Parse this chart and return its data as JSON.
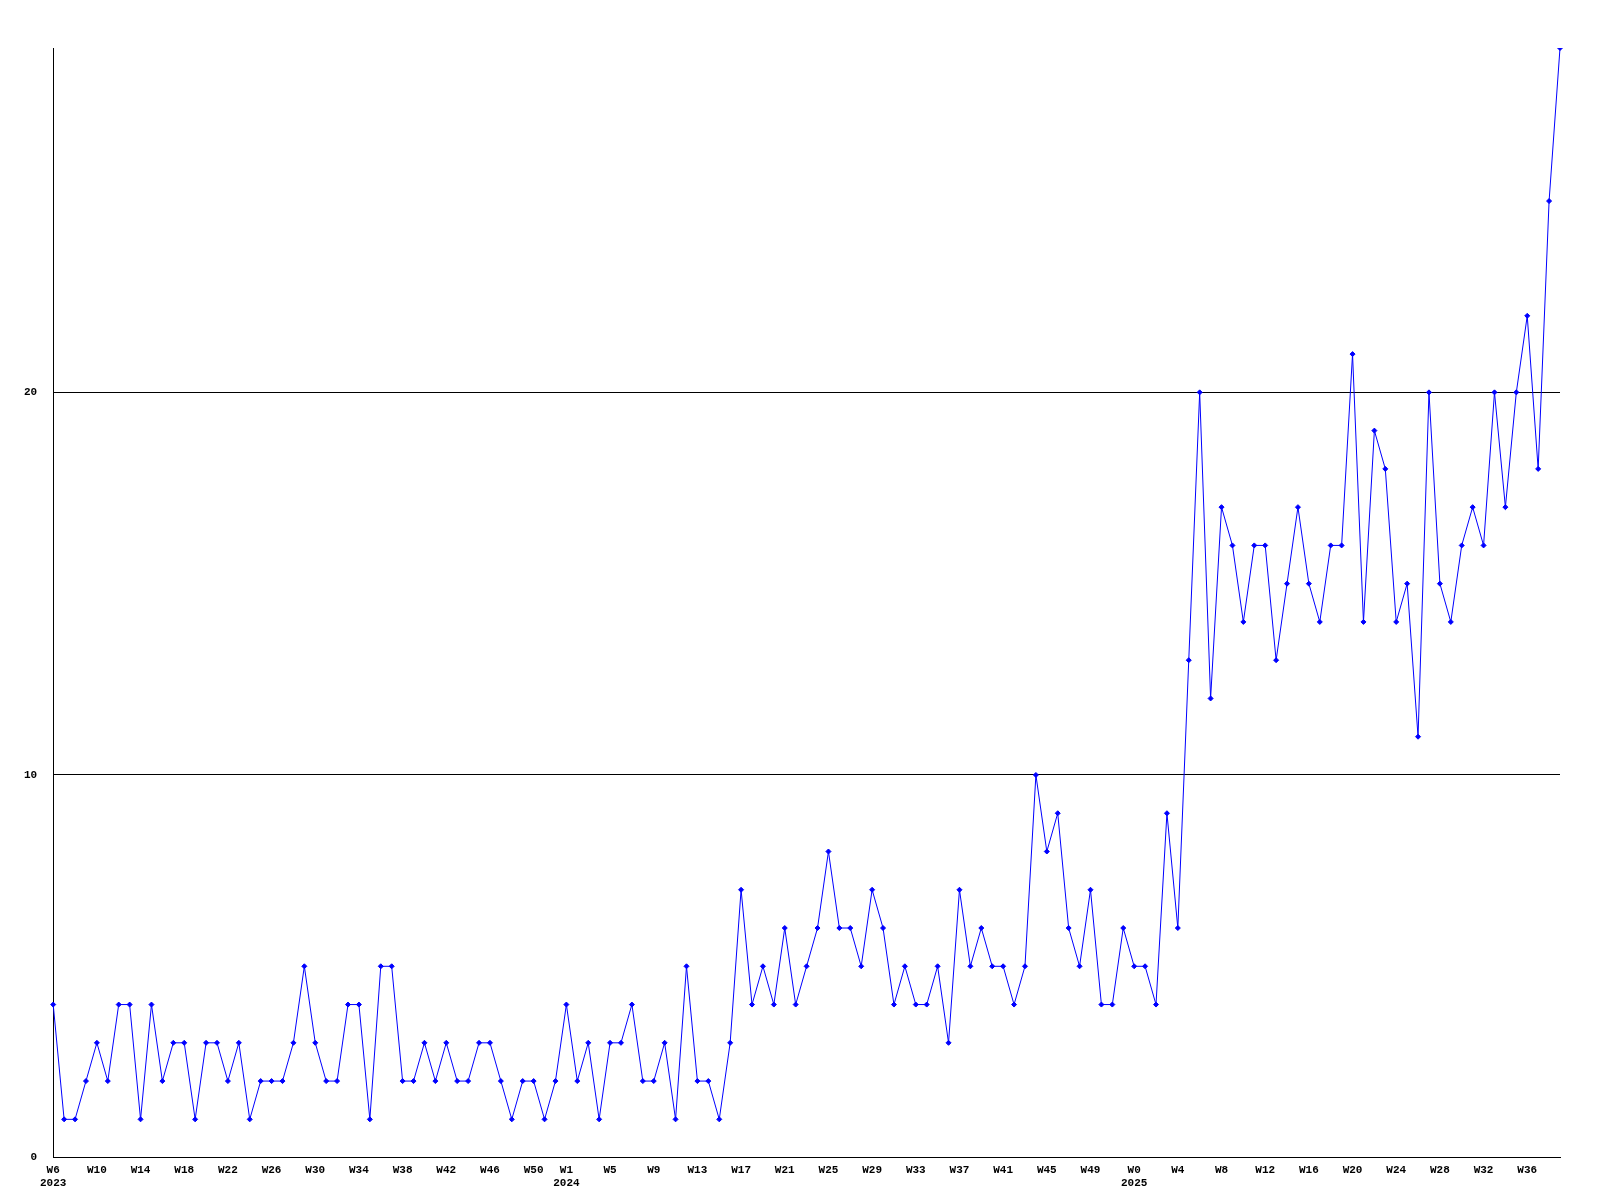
{
  "chart_data": {
    "type": "line",
    "categories": [
      "W6 2023",
      null,
      null,
      null,
      "W10",
      null,
      null,
      null,
      "W14",
      null,
      null,
      null,
      "W18",
      null,
      null,
      null,
      "W22",
      null,
      null,
      null,
      "W26",
      null,
      null,
      null,
      "W30",
      null,
      null,
      null,
      "W34",
      null,
      null,
      null,
      "W38",
      null,
      null,
      null,
      "W42",
      null,
      null,
      null,
      "W46",
      null,
      null,
      null,
      "W50",
      null,
      null,
      "W1 2024",
      null,
      null,
      null,
      "W5",
      null,
      null,
      null,
      "W9",
      null,
      null,
      null,
      "W13",
      null,
      null,
      null,
      "W17",
      null,
      null,
      null,
      "W21",
      null,
      null,
      null,
      "W25",
      null,
      null,
      null,
      "W29",
      null,
      null,
      null,
      "W33",
      null,
      null,
      null,
      "W37",
      null,
      null,
      null,
      "W41",
      null,
      null,
      null,
      "W45",
      null,
      null,
      null,
      "W49",
      null,
      null,
      null,
      "W0 2025",
      null,
      null,
      null,
      "W4",
      null,
      null,
      null,
      "W8",
      null,
      null,
      null,
      "W12",
      null,
      null,
      null,
      "W16",
      null,
      null,
      null,
      "W20",
      null,
      null,
      null,
      "W24",
      null,
      null,
      null,
      "W28",
      null,
      null,
      null,
      "W32",
      null,
      null,
      null,
      "W36",
      null,
      null,
      null
    ],
    "series": [
      {
        "color": "#0000ff",
        "values": [
          4,
          1,
          1,
          2,
          3,
          2,
          4,
          4,
          1,
          4,
          2,
          3,
          3,
          1,
          3,
          3,
          2,
          3,
          1,
          2,
          2,
          2,
          3,
          5,
          3,
          2,
          2,
          4,
          4,
          1,
          5,
          5,
          2,
          2,
          3,
          2,
          3,
          2,
          2,
          3,
          3,
          2,
          1,
          2,
          2,
          1,
          2,
          4,
          2,
          3,
          1,
          3,
          3,
          4,
          2,
          2,
          3,
          1,
          5,
          2,
          2,
          1,
          3,
          7,
          4,
          5,
          4,
          6,
          4,
          5,
          6,
          8,
          6,
          6,
          5,
          7,
          6,
          4,
          5,
          4,
          4,
          5,
          3,
          7,
          5,
          6,
          5,
          5,
          4,
          5,
          10,
          8,
          9,
          6,
          5,
          7,
          4,
          4,
          6,
          5,
          5,
          4,
          9,
          6,
          13,
          20,
          12,
          17,
          16,
          14,
          16,
          16,
          13,
          15,
          17,
          15,
          14,
          16,
          16,
          21,
          14,
          19,
          18,
          14,
          15,
          11,
          20,
          15,
          14,
          16,
          17,
          16,
          20,
          17,
          20,
          22,
          18,
          25,
          29
        ]
      }
    ],
    "ylim": [
      0,
      29
    ],
    "yticks": [
      0,
      10,
      20
    ],
    "grid": "y",
    "marker": "diamond",
    "line_style": "solid"
  }
}
